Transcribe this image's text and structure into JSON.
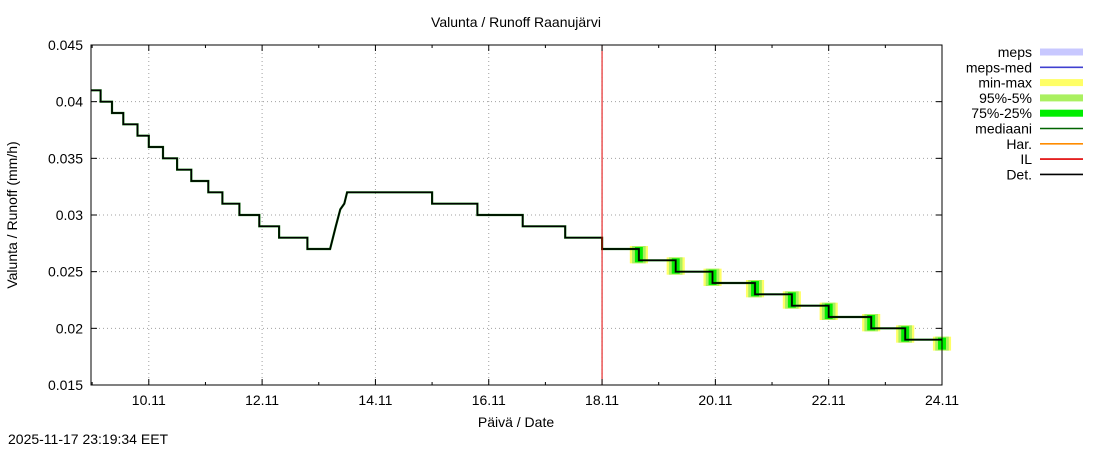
{
  "timestamp": "2025-11-17 23:19:34 EET",
  "chart_data": {
    "type": "line",
    "title": "Valunta / Runoff  Raanujärvi",
    "xlabel": "Päivä / Date",
    "ylabel": "Valunta / Runoff (mm/h)",
    "ylim": [
      0.015,
      0.045
    ],
    "xlim_days": [
      8.98,
      24.0
    ],
    "yticks": [
      "0.015",
      "0.02",
      "0.025",
      "0.03",
      "0.035",
      "0.04",
      "0.045"
    ],
    "xticks": [
      {
        "label": "10.11",
        "day": 10
      },
      {
        "label": "12.11",
        "day": 12
      },
      {
        "label": "14.11",
        "day": 14
      },
      {
        "label": "16.11",
        "day": 16
      },
      {
        "label": "18.11",
        "day": 18
      },
      {
        "label": "20.11",
        "day": 20
      },
      {
        "label": "22.11",
        "day": 22
      },
      {
        "label": "24.11",
        "day": 24
      }
    ],
    "grid": true,
    "legend_position": "right",
    "legend": [
      {
        "label": "meps",
        "color": "#c8c8ff",
        "style": "band"
      },
      {
        "label": "meps-med",
        "color": "#4040d0",
        "style": "line"
      },
      {
        "label": "min-max",
        "color": "#ffff66",
        "style": "band"
      },
      {
        "label": "95%-5%",
        "color": "#aaf060",
        "style": "band"
      },
      {
        "label": "75%-25%",
        "color": "#00ee00",
        "style": "band"
      },
      {
        "label": "mediaani",
        "color": "#006400",
        "style": "line"
      },
      {
        "label": "Har.",
        "color": "#ff8c00",
        "style": "line"
      },
      {
        "label": "IL",
        "color": "#e00000",
        "style": "line"
      },
      {
        "label": "Det.",
        "color": "#000000",
        "style": "line"
      }
    ],
    "forecast_start_day": 18.0,
    "series": [
      {
        "name": "Det.",
        "color": "#000000",
        "points": [
          [
            8.98,
            0.041
          ],
          [
            9.15,
            0.041
          ],
          [
            9.15,
            0.04
          ],
          [
            9.35,
            0.04
          ],
          [
            9.35,
            0.039
          ],
          [
            9.55,
            0.039
          ],
          [
            9.55,
            0.038
          ],
          [
            9.8,
            0.038
          ],
          [
            9.8,
            0.037
          ],
          [
            10.0,
            0.037
          ],
          [
            10.0,
            0.036
          ],
          [
            10.25,
            0.036
          ],
          [
            10.25,
            0.035
          ],
          [
            10.5,
            0.035
          ],
          [
            10.5,
            0.034
          ],
          [
            10.75,
            0.034
          ],
          [
            10.75,
            0.033
          ],
          [
            11.05,
            0.033
          ],
          [
            11.05,
            0.032
          ],
          [
            11.3,
            0.032
          ],
          [
            11.3,
            0.031
          ],
          [
            11.6,
            0.031
          ],
          [
            11.6,
            0.03
          ],
          [
            11.95,
            0.03
          ],
          [
            11.95,
            0.029
          ],
          [
            12.3,
            0.029
          ],
          [
            12.3,
            0.028
          ],
          [
            12.8,
            0.028
          ],
          [
            12.8,
            0.027
          ],
          [
            13.2,
            0.027
          ],
          [
            13.3,
            0.029
          ],
          [
            13.38,
            0.0305
          ],
          [
            13.45,
            0.031
          ],
          [
            13.5,
            0.032
          ],
          [
            15.0,
            0.032
          ],
          [
            15.0,
            0.031
          ],
          [
            15.8,
            0.031
          ],
          [
            15.8,
            0.03
          ],
          [
            16.6,
            0.03
          ],
          [
            16.6,
            0.029
          ],
          [
            17.35,
            0.029
          ],
          [
            17.35,
            0.028
          ],
          [
            18.0,
            0.028
          ],
          [
            18.0,
            0.027
          ],
          [
            18.65,
            0.027
          ],
          [
            18.65,
            0.026
          ],
          [
            19.3,
            0.026
          ],
          [
            19.3,
            0.025
          ],
          [
            19.95,
            0.025
          ],
          [
            19.95,
            0.024
          ],
          [
            20.7,
            0.024
          ],
          [
            20.7,
            0.023
          ],
          [
            21.35,
            0.023
          ],
          [
            21.35,
            0.022
          ],
          [
            22.0,
            0.022
          ],
          [
            22.0,
            0.021
          ],
          [
            22.75,
            0.021
          ],
          [
            22.75,
            0.02
          ],
          [
            23.35,
            0.02
          ],
          [
            23.35,
            0.019
          ],
          [
            24.0,
            0.019
          ]
        ]
      }
    ],
    "forecast_steps": [
      {
        "day": 18.65,
        "from": 0.027,
        "to": 0.026
      },
      {
        "day": 19.3,
        "from": 0.026,
        "to": 0.025
      },
      {
        "day": 19.95,
        "from": 0.025,
        "to": 0.024
      },
      {
        "day": 20.7,
        "from": 0.024,
        "to": 0.023
      },
      {
        "day": 21.35,
        "from": 0.023,
        "to": 0.022
      },
      {
        "day": 22.0,
        "from": 0.022,
        "to": 0.021
      },
      {
        "day": 22.75,
        "from": 0.021,
        "to": 0.02
      },
      {
        "day": 23.35,
        "from": 0.02,
        "to": 0.019
      },
      {
        "day": 24.0,
        "from": 0.019,
        "to": 0.0183
      }
    ]
  }
}
